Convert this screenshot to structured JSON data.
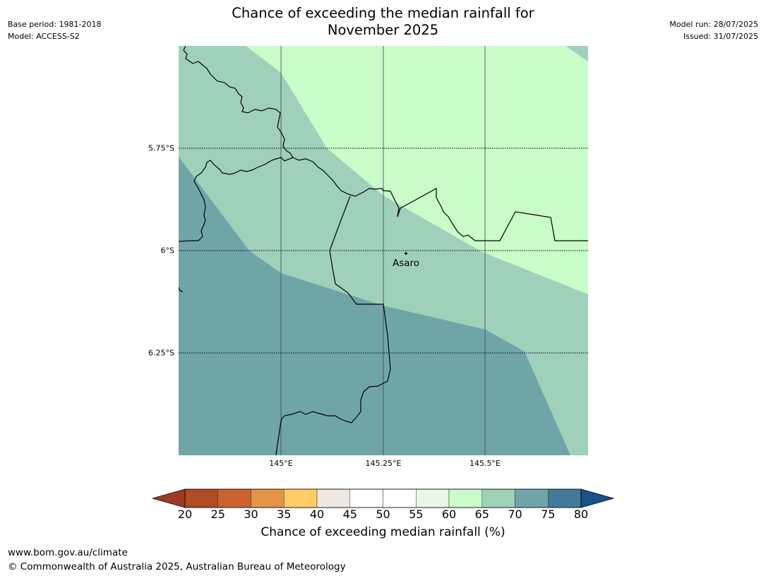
{
  "title": {
    "line1": "Chance of exceeding the median rainfall for",
    "line2": "November 2025"
  },
  "meta_left": {
    "base_period": "Base period: 1981-2018",
    "model": "Model: ACCESS-S2"
  },
  "meta_right": {
    "model_run": "Model run: 28/07/2025",
    "issued": "Issued: 31/07/2025"
  },
  "map": {
    "lat_labels": [
      "5.75°S",
      "6°S",
      "6.25°S"
    ],
    "lon_labels": [
      "145°E",
      "145.25°E",
      "145.5°E"
    ],
    "place": "Asaro",
    "colors": {
      "band_60_65": "#c9fcc9",
      "band_65_70": "#9fd0ba",
      "band_70_75": "#70a5a7"
    }
  },
  "colorbar": {
    "ticks": [
      "20",
      "25",
      "30",
      "35",
      "40",
      "45",
      "50",
      "55",
      "60",
      "65",
      "70",
      "75",
      "80"
    ],
    "colors": [
      "#9e3a24",
      "#b24a24",
      "#cc6230",
      "#e39447",
      "#ffcc66",
      "#ede8e4",
      "#ffffff",
      "#ffffff",
      "#e9f7e9",
      "#c9fcc9",
      "#9fd0ba",
      "#70a5a7",
      "#417a9a",
      "#1a5189"
    ],
    "label": "Chance of exceeding median rainfall (%)"
  },
  "footer": {
    "url": "www.bom.gov.au/climate",
    "copyright": "© Commonwealth of Australia 2025, Australian Bureau of Meteorology"
  }
}
